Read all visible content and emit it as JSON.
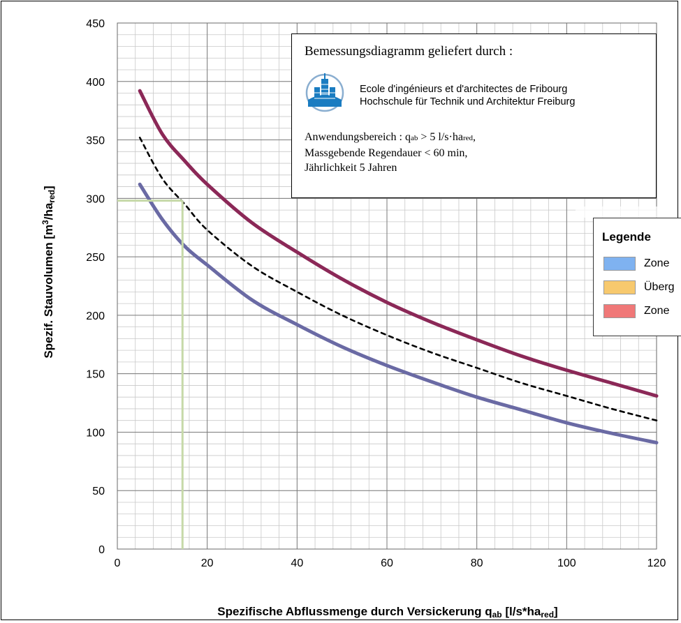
{
  "chart_data": {
    "type": "line",
    "xlabel": "Spezifische Abflussmenge durch Versickerung q",
    "xlabel_sub": "ab",
    "xlabel_unit_pre": " [l/s*ha",
    "xlabel_unit_sub": "red",
    "xlabel_unit_post": "]",
    "ylabel": "Spezif. Stauvolumen [m",
    "ylabel_sup": "3",
    "ylabel_mid": "/ha",
    "ylabel_sub": "red",
    "ylabel_post": "]",
    "xlim": [
      0,
      120
    ],
    "ylim": [
      0,
      450
    ],
    "x_ticks": [
      0,
      20,
      40,
      60,
      80,
      100,
      120
    ],
    "y_ticks": [
      0,
      50,
      100,
      150,
      200,
      250,
      300,
      350,
      400,
      450
    ],
    "grid": true,
    "series": [
      {
        "color": "#8b2857",
        "style": "solid",
        "x": [
          5,
          10,
          15,
          20,
          30,
          40,
          50,
          60,
          70,
          80,
          90,
          100,
          110,
          120
        ],
        "values": [
          392,
          355,
          332,
          312,
          279,
          254,
          231,
          211,
          194,
          179,
          165,
          153,
          142,
          131
        ]
      },
      {
        "color": "#000000",
        "style": "dashed",
        "x": [
          5,
          10,
          15,
          20,
          30,
          40,
          50,
          60,
          70,
          80,
          90,
          100,
          110,
          120
        ],
        "values": [
          352,
          317,
          295,
          273,
          242,
          220,
          200,
          183,
          168,
          155,
          142,
          131,
          120,
          110
        ]
      },
      {
        "color": "#6a6aa4",
        "style": "solid",
        "x": [
          5,
          10,
          15,
          20,
          30,
          40,
          50,
          60,
          70,
          80,
          90,
          100,
          110,
          120
        ],
        "values": [
          312,
          282,
          259,
          243,
          213,
          192,
          173,
          157,
          143,
          130,
          119,
          108,
          99,
          91
        ]
      }
    ],
    "reference_lines": {
      "color": "#c6d9a8",
      "x": 14.5,
      "y": 298
    }
  },
  "info_box": {
    "title": "Bemessungsdiagramm geliefert durch :",
    "logo": "eia-fribourg-logo",
    "school_line_1": "Ecole d'ingénieurs et d'architectes de Fribourg",
    "school_line_2": "Hochschule für Technik und Architektur Freiburg",
    "line1_pre": "Anwendungsbereich : q",
    "line1_sub1": "ab",
    "line1_mid": " > 5 l/s·ha",
    "line1_sub2": "red",
    "line1_post": ",",
    "line2": "Massgebende Regendauer  < 60 min,",
    "line3": "Jährlichkeit 5 Jahren"
  },
  "legend": {
    "title": "Legende",
    "items": [
      {
        "label": "Zone",
        "color": "#7fb2f0"
      },
      {
        "label": "Überg",
        "color": "#f7c96e"
      },
      {
        "label": "Zone",
        "color": "#f07878"
      }
    ]
  }
}
